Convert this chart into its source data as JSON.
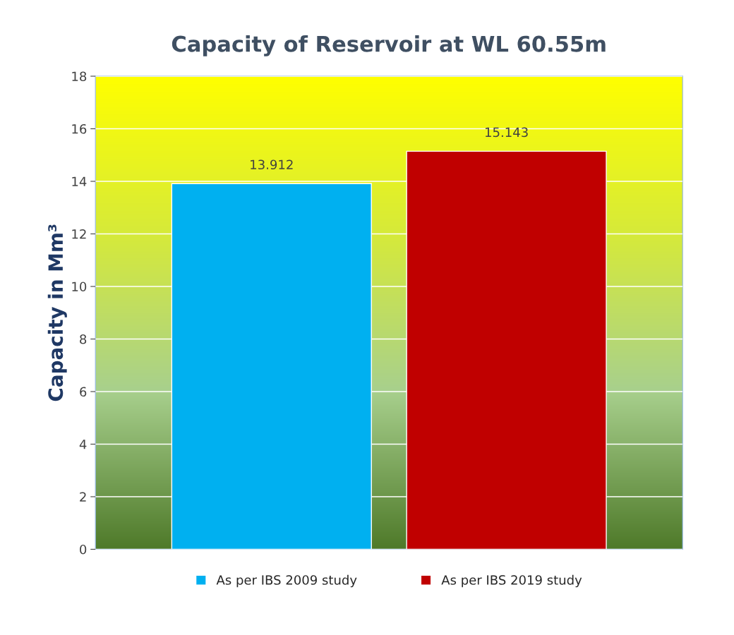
{
  "chart_data": {
    "type": "bar",
    "title": "Capacity of Reservoir at WL 60.55m",
    "ylabel": "Capacity in Mm³",
    "categories": [
      null
    ],
    "series": [
      {
        "name": "As per IBS 2009 study",
        "color": "#00b0f0",
        "values": [
          13.912
        ]
      },
      {
        "name": "As per IBS 2019 study",
        "color": "#c00000",
        "values": [
          15.143
        ]
      }
    ],
    "ylim": [
      0,
      18
    ],
    "yticks": [
      0,
      2,
      4,
      6,
      8,
      10,
      12,
      14,
      16,
      18
    ],
    "grid": "y",
    "legend": "bottom",
    "data_labels": true
  }
}
